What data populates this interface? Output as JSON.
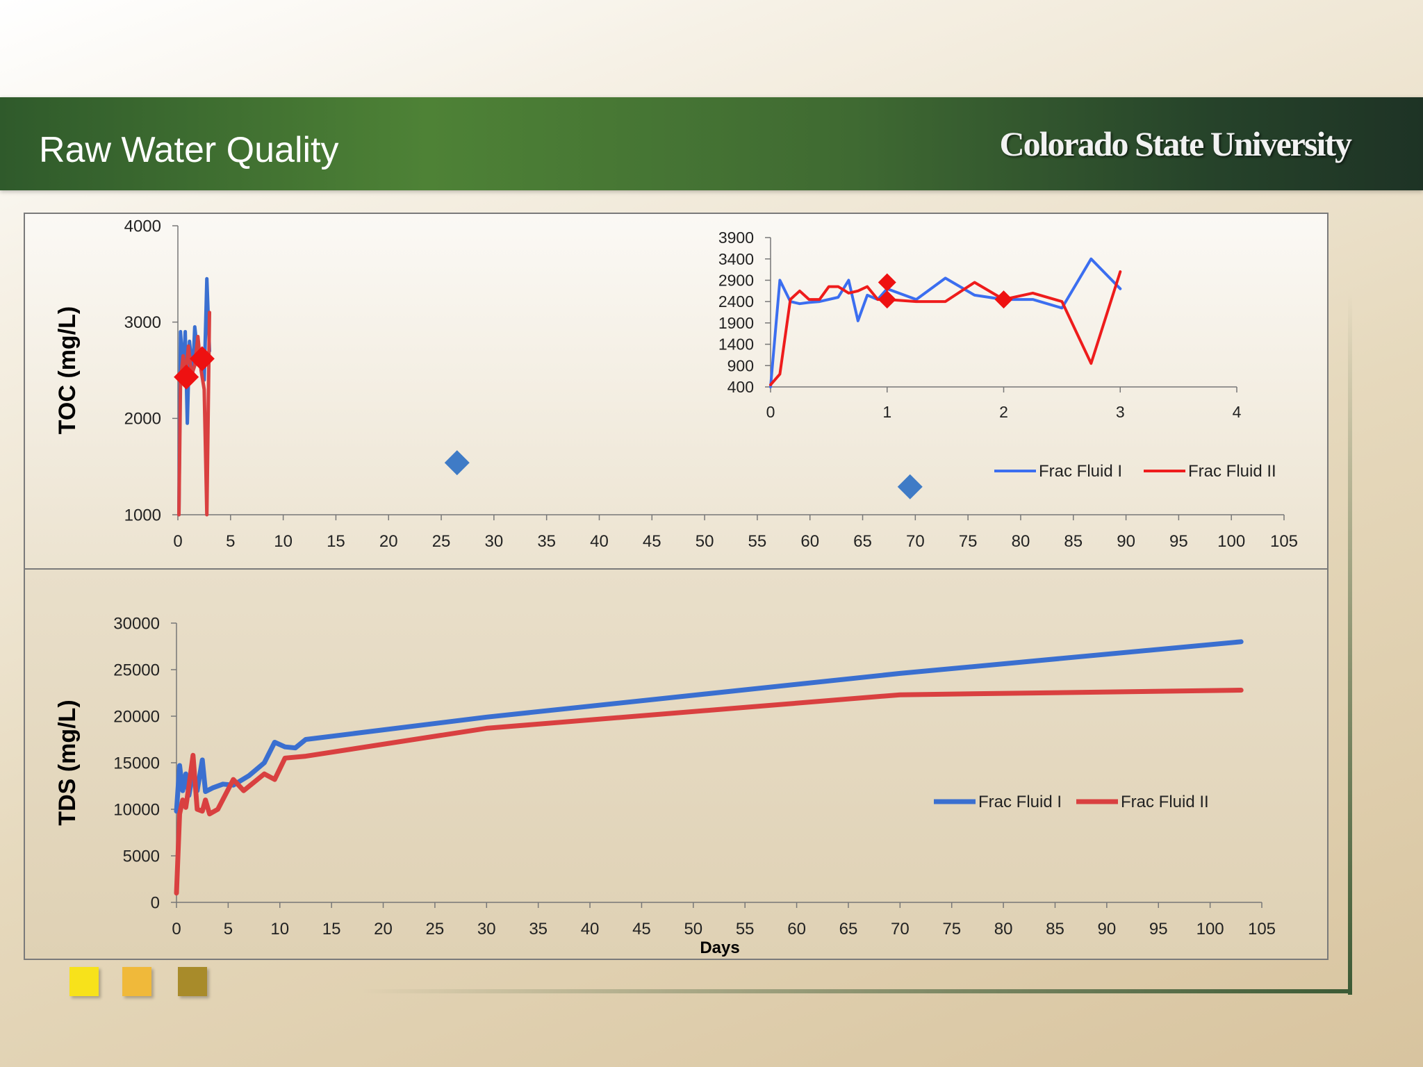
{
  "slide": {
    "title": "Raw Water Quality",
    "logo_text": "Colorado State University"
  },
  "colors": {
    "fluid1": "#3a6fd0",
    "fluid2": "#d94040",
    "inset_fluid1": "#3b6ef0",
    "inset_fluid2": "#ee1c1c",
    "marker_red": "#ee1111",
    "marker_blue": "#3f7bc6",
    "squares": [
      "#f7e21b",
      "#f0b93a",
      "#a88b2a"
    ]
  },
  "chart_data": [
    {
      "id": "toc-main",
      "type": "line",
      "ylabel": "TOC (mg/L)",
      "xlabel": "",
      "xlim": [
        0,
        105
      ],
      "ylim": [
        1000,
        4000
      ],
      "xticks": [
        0,
        5,
        10,
        15,
        20,
        25,
        30,
        35,
        40,
        45,
        50,
        55,
        60,
        65,
        70,
        75,
        80,
        85,
        90,
        95,
        100,
        105
      ],
      "yticks": [
        1000,
        2000,
        3000,
        4000
      ],
      "series": [
        {
          "name": "",
          "color_key": "fluid1",
          "points": [
            [
              0.1,
              1000
            ],
            [
              0.25,
              2900
            ],
            [
              0.5,
              2450
            ],
            [
              0.7,
              2900
            ],
            [
              0.9,
              1950
            ],
            [
              1.1,
              2800
            ],
            [
              1.4,
              2450
            ],
            [
              1.6,
              2950
            ],
            [
              1.9,
              2650
            ],
            [
              2.2,
              2550
            ],
            [
              2.5,
              2400
            ],
            [
              2.75,
              3450
            ],
            [
              3.0,
              2700
            ]
          ]
        },
        {
          "name": "",
          "color_key": "fluid2",
          "points": [
            [
              0.1,
              1000
            ],
            [
              0.25,
              2400
            ],
            [
              0.5,
              2650
            ],
            [
              0.7,
              2400
            ],
            [
              1.0,
              2750
            ],
            [
              1.3,
              2450
            ],
            [
              1.6,
              2550
            ],
            [
              1.9,
              2850
            ],
            [
              2.2,
              2500
            ],
            [
              2.5,
              2300
            ],
            [
              2.75,
              1000
            ],
            [
              3.0,
              3100
            ]
          ]
        }
      ],
      "markers": [
        {
          "x": 0.8,
          "y": 2430,
          "color_key": "marker_red"
        },
        {
          "x": 2.3,
          "y": 2620,
          "color_key": "marker_red"
        },
        {
          "x": 26.5,
          "y": 1540,
          "color_key": "marker_blue"
        },
        {
          "x": 69.5,
          "y": 1290,
          "color_key": "marker_blue"
        }
      ]
    },
    {
      "id": "toc-inset",
      "type": "line",
      "xlim": [
        0,
        4
      ],
      "ylim": [
        400,
        3900
      ],
      "xticks": [
        0,
        1,
        2,
        3,
        4
      ],
      "yticks": [
        400,
        900,
        1400,
        1900,
        2400,
        2900,
        3400,
        3900
      ],
      "legend": [
        "Frac Fluid I",
        "Frac Fluid II"
      ],
      "legend_position": "bottom-right",
      "series": [
        {
          "name": "Frac Fluid I",
          "color_key": "inset_fluid1",
          "points": [
            [
              0,
              400
            ],
            [
              0.08,
              2900
            ],
            [
              0.17,
              2400
            ],
            [
              0.25,
              2350
            ],
            [
              0.33,
              2380
            ],
            [
              0.42,
              2400
            ],
            [
              0.58,
              2500
            ],
            [
              0.67,
              2900
            ],
            [
              0.75,
              1950
            ],
            [
              0.83,
              2550
            ],
            [
              0.92,
              2450
            ],
            [
              1.0,
              2700
            ],
            [
              1.25,
              2450
            ],
            [
              1.5,
              2950
            ],
            [
              1.75,
              2550
            ],
            [
              2.0,
              2450
            ],
            [
              2.25,
              2450
            ],
            [
              2.5,
              2250
            ],
            [
              2.75,
              3400
            ],
            [
              3.0,
              2700
            ]
          ]
        },
        {
          "name": "Frac Fluid II",
          "color_key": "inset_fluid2",
          "points": [
            [
              0,
              450
            ],
            [
              0.08,
              700
            ],
            [
              0.17,
              2450
            ],
            [
              0.25,
              2650
            ],
            [
              0.33,
              2450
            ],
            [
              0.42,
              2450
            ],
            [
              0.5,
              2750
            ],
            [
              0.58,
              2750
            ],
            [
              0.67,
              2600
            ],
            [
              0.75,
              2650
            ],
            [
              0.83,
              2750
            ],
            [
              0.92,
              2450
            ],
            [
              1.0,
              2450
            ],
            [
              1.25,
              2400
            ],
            [
              1.5,
              2400
            ],
            [
              1.75,
              2850
            ],
            [
              2.0,
              2450
            ],
            [
              2.25,
              2600
            ],
            [
              2.5,
              2400
            ],
            [
              2.75,
              950
            ],
            [
              3.0,
              3100
            ]
          ]
        }
      ],
      "markers": [
        {
          "x": 1.0,
          "y": 2850,
          "color_key": "marker_red"
        },
        {
          "x": 1.0,
          "y": 2450,
          "color_key": "marker_red"
        },
        {
          "x": 2.0,
          "y": 2450,
          "color_key": "marker_red"
        }
      ]
    },
    {
      "id": "tds",
      "type": "line",
      "ylabel": "TDS (mg/L)",
      "xlabel": "Days",
      "xlim": [
        0,
        105
      ],
      "ylim": [
        0,
        30000
      ],
      "xticks": [
        0,
        5,
        10,
        15,
        20,
        25,
        30,
        35,
        40,
        45,
        50,
        55,
        60,
        65,
        70,
        75,
        80,
        85,
        90,
        95,
        100,
        105
      ],
      "yticks": [
        0,
        5000,
        10000,
        15000,
        20000,
        25000,
        30000
      ],
      "legend": [
        "Frac Fluid I",
        "Frac Fluid II"
      ],
      "legend_position": "right",
      "series": [
        {
          "name": "Frac Fluid I",
          "color_key": "fluid1",
          "points": [
            [
              0,
              9800
            ],
            [
              0.3,
              14700
            ],
            [
              0.6,
              12000
            ],
            [
              0.9,
              13800
            ],
            [
              1.2,
              11500
            ],
            [
              1.6,
              14000
            ],
            [
              2.0,
              12000
            ],
            [
              2.5,
              15300
            ],
            [
              2.8,
              11900
            ],
            [
              3.5,
              12300
            ],
            [
              4.5,
              12700
            ],
            [
              5.5,
              12600
            ],
            [
              7,
              13600
            ],
            [
              8.5,
              15000
            ],
            [
              9.5,
              17200
            ],
            [
              10.5,
              16700
            ],
            [
              11.5,
              16600
            ],
            [
              12.5,
              17500
            ],
            [
              30,
              19900
            ],
            [
              70,
              24600
            ],
            [
              103,
              28000
            ]
          ]
        },
        {
          "name": "Frac Fluid II",
          "color_key": "fluid2",
          "points": [
            [
              0,
              1000
            ],
            [
              0.3,
              9500
            ],
            [
              0.6,
              11000
            ],
            [
              0.9,
              10200
            ],
            [
              1.2,
              12500
            ],
            [
              1.6,
              15800
            ],
            [
              2.0,
              10000
            ],
            [
              2.5,
              9800
            ],
            [
              2.8,
              11000
            ],
            [
              3.2,
              9500
            ],
            [
              4,
              10000
            ],
            [
              5.5,
              13200
            ],
            [
              6.5,
              12000
            ],
            [
              8.5,
              13800
            ],
            [
              9.5,
              13200
            ],
            [
              10.5,
              15500
            ],
            [
              12.5,
              15700
            ],
            [
              30,
              18700
            ],
            [
              70,
              22300
            ],
            [
              103,
              22800
            ]
          ]
        }
      ]
    }
  ]
}
